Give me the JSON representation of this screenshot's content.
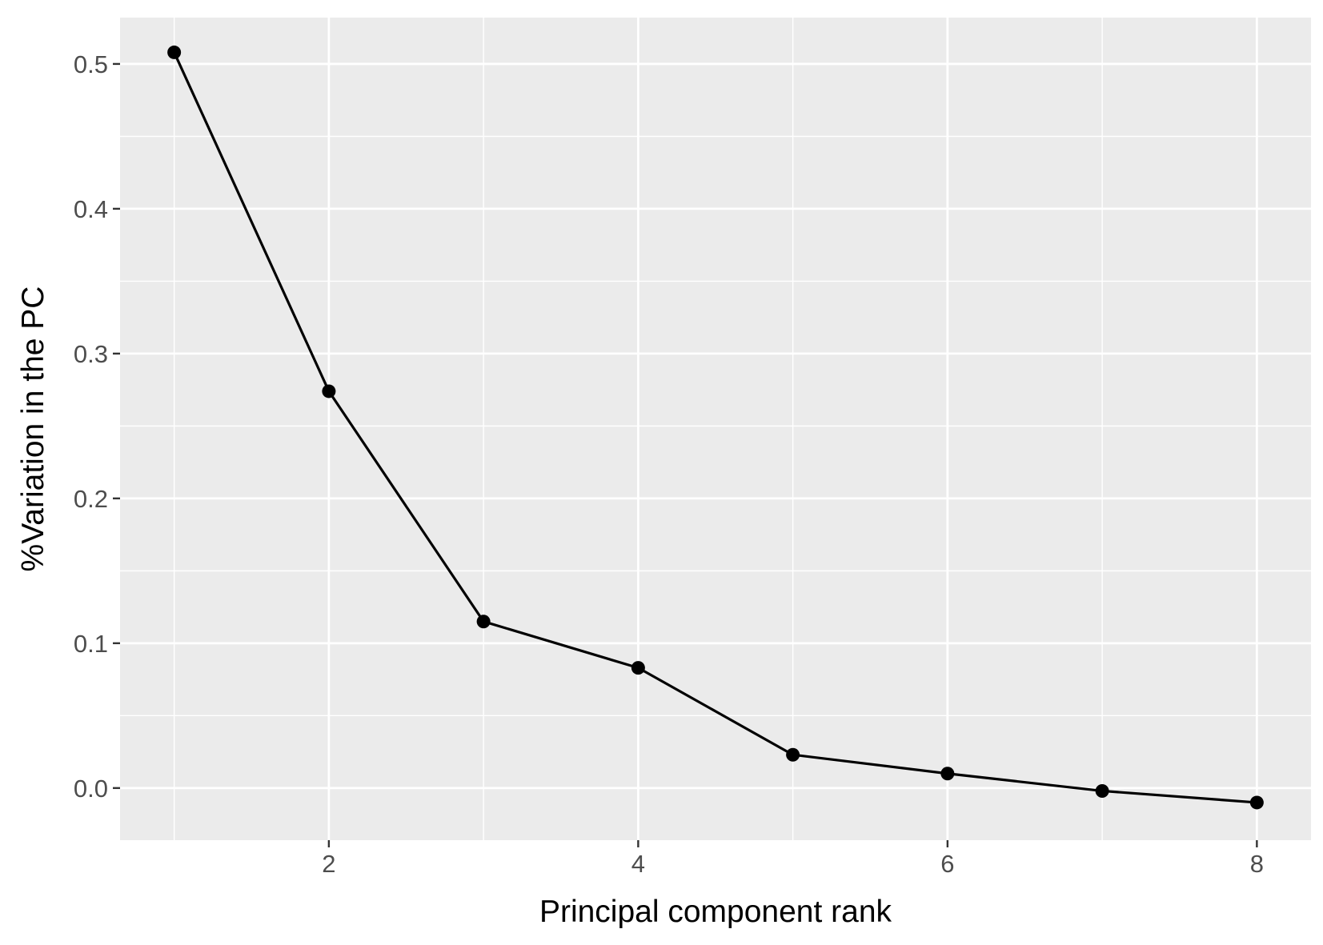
{
  "chart_data": {
    "type": "line",
    "title": "",
    "xlabel": "Principal component rank",
    "ylabel": "%Variation in the PC",
    "xlim": [
      0.65,
      8.35
    ],
    "ylim": [
      -0.036,
      0.532
    ],
    "x_ticks": [
      2,
      4,
      6,
      8
    ],
    "x_tick_labels": [
      "2",
      "4",
      "6",
      "8"
    ],
    "x_minor_ticks": [
      1,
      3,
      5,
      7
    ],
    "y_ticks": [
      0.0,
      0.1,
      0.2,
      0.3,
      0.4,
      0.5
    ],
    "y_tick_labels": [
      "0.0",
      "0.1",
      "0.2",
      "0.3",
      "0.4",
      "0.5"
    ],
    "y_minor_ticks": [
      0.05,
      0.15,
      0.25,
      0.35,
      0.45
    ],
    "grid": true,
    "legend": "none",
    "series": [
      {
        "x": [
          1,
          2,
          3,
          4,
          5,
          6,
          7,
          8
        ],
        "values": [
          0.508,
          0.274,
          0.115,
          0.083,
          0.023,
          0.01,
          -0.002,
          -0.01
        ],
        "color": "#000000",
        "markers": true
      }
    ]
  },
  "colors": {
    "panel_background": "#EBEBEB",
    "grid": "#FFFFFF",
    "tick_text": "#4D4D4D",
    "tick_mark": "#333333"
  }
}
